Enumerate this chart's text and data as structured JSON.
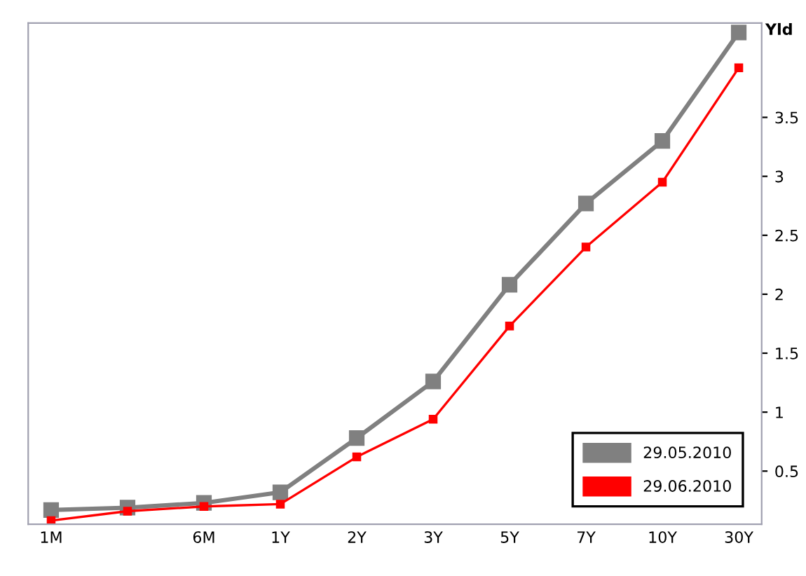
{
  "chart_data": {
    "type": "line",
    "ylabel": "Yld",
    "categories": [
      "1M",
      null,
      "6M",
      "1Y",
      "2Y",
      "3Y",
      "5Y",
      "7Y",
      "10Y",
      "30Y"
    ],
    "series": [
      {
        "name": "29.05.2010",
        "color": "#808080",
        "values": [
          0.17,
          0.19,
          0.23,
          0.32,
          0.78,
          1.26,
          2.08,
          2.77,
          3.3,
          4.22
        ]
      },
      {
        "name": "29.06.2010",
        "color": "#ff0000",
        "values": [
          0.08,
          0.16,
          0.2,
          0.22,
          0.62,
          0.94,
          1.73,
          2.4,
          2.95,
          3.92
        ]
      }
    ],
    "ylim": [
      0.05,
      4.3
    ],
    "yticks": [
      0.5,
      1,
      1.5,
      2,
      2.5,
      3,
      3.5
    ],
    "grid": false,
    "legend": "bottom right",
    "marker": "square",
    "line_style": "solid"
  }
}
